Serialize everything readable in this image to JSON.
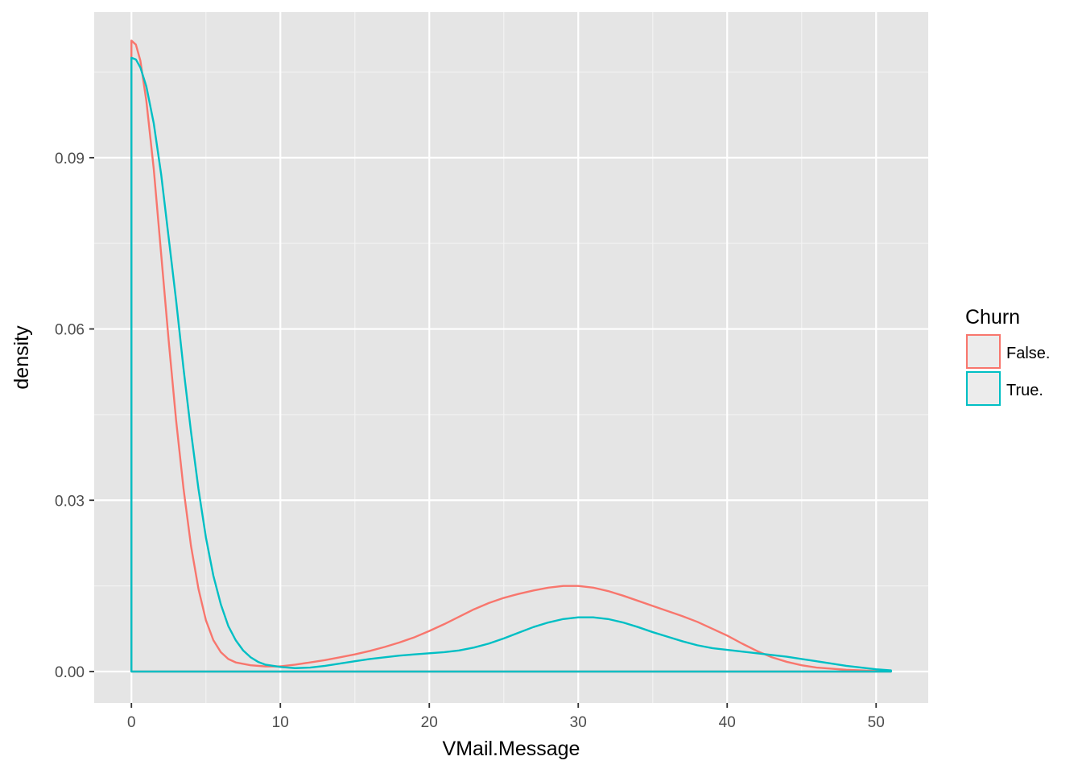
{
  "chart_data": {
    "type": "area",
    "xlabel": "VMail.Message",
    "ylabel": "density",
    "xlim": [
      -2.5,
      53.5
    ],
    "ylim": [
      -0.0055,
      0.1155
    ],
    "x_ticks": [
      0,
      10,
      20,
      30,
      40,
      50
    ],
    "y_ticks": [
      0.0,
      0.03,
      0.06,
      0.09
    ],
    "x_tick_labels": [
      "0",
      "10",
      "20",
      "30",
      "40",
      "50"
    ],
    "y_tick_labels": [
      "0.00",
      "0.03",
      "0.06",
      "0.09"
    ],
    "grid": true,
    "legend": {
      "title": "Churn",
      "position": "right"
    },
    "series": [
      {
        "name": "False.",
        "color": "#F8766D",
        "x": [
          0,
          0.3,
          0.6,
          1,
          1.5,
          2,
          2.5,
          3,
          3.5,
          4,
          4.5,
          5,
          5.5,
          6,
          6.5,
          7,
          8,
          9,
          10,
          11,
          12,
          13,
          14,
          15,
          16,
          17,
          18,
          19,
          20,
          21,
          22,
          23,
          24,
          25,
          26,
          27,
          28,
          29,
          30,
          31,
          32,
          33,
          34,
          35,
          36,
          37,
          38,
          39,
          40,
          41,
          42,
          43,
          44,
          45,
          46,
          47,
          48,
          49,
          50,
          51
        ],
        "y": [
          0.1105,
          0.1098,
          0.107,
          0.1,
          0.088,
          0.073,
          0.058,
          0.044,
          0.032,
          0.022,
          0.0145,
          0.009,
          0.0055,
          0.0034,
          0.0022,
          0.0016,
          0.0011,
          0.0009,
          0.0009,
          0.0012,
          0.0016,
          0.002,
          0.0025,
          0.003,
          0.0036,
          0.0043,
          0.0051,
          0.006,
          0.0071,
          0.0083,
          0.0096,
          0.0109,
          0.012,
          0.0129,
          0.0136,
          0.0142,
          0.0147,
          0.015,
          0.015,
          0.0147,
          0.0141,
          0.0133,
          0.0124,
          0.0115,
          0.0106,
          0.0097,
          0.0087,
          0.0075,
          0.0063,
          0.0049,
          0.0036,
          0.0025,
          0.0017,
          0.0011,
          0.0007,
          0.0005,
          0.0003,
          0.0002,
          0.0001,
          0.0
        ]
      },
      {
        "name": "True.",
        "color": "#00BFC4",
        "x": [
          0,
          0.3,
          0.6,
          1,
          1.5,
          2,
          2.5,
          3,
          3.5,
          4,
          4.5,
          5,
          5.5,
          6,
          6.5,
          7,
          7.5,
          8,
          8.5,
          9,
          10,
          11,
          12,
          13,
          14,
          15,
          16,
          17,
          18,
          19,
          20,
          21,
          22,
          23,
          24,
          25,
          26,
          27,
          28,
          29,
          30,
          31,
          32,
          33,
          34,
          35,
          36,
          37,
          38,
          39,
          40,
          41,
          42,
          43,
          44,
          45,
          46,
          47,
          48,
          49,
          50,
          51
        ],
        "y": [
          0.1075,
          0.1072,
          0.1058,
          0.1025,
          0.096,
          0.087,
          0.076,
          0.065,
          0.053,
          0.042,
          0.032,
          0.0235,
          0.0168,
          0.0118,
          0.008,
          0.0055,
          0.0037,
          0.0025,
          0.0017,
          0.0012,
          0.0008,
          0.0006,
          0.0007,
          0.001,
          0.0014,
          0.0018,
          0.0022,
          0.0025,
          0.0028,
          0.003,
          0.0032,
          0.0034,
          0.0037,
          0.0042,
          0.0049,
          0.0058,
          0.0068,
          0.0078,
          0.0086,
          0.0092,
          0.0095,
          0.0095,
          0.0092,
          0.0086,
          0.0078,
          0.0069,
          0.0061,
          0.0053,
          0.0046,
          0.0041,
          0.0038,
          0.0035,
          0.0032,
          0.0029,
          0.0026,
          0.0022,
          0.0018,
          0.0014,
          0.001,
          0.0007,
          0.0004,
          0.0002
        ]
      }
    ]
  }
}
